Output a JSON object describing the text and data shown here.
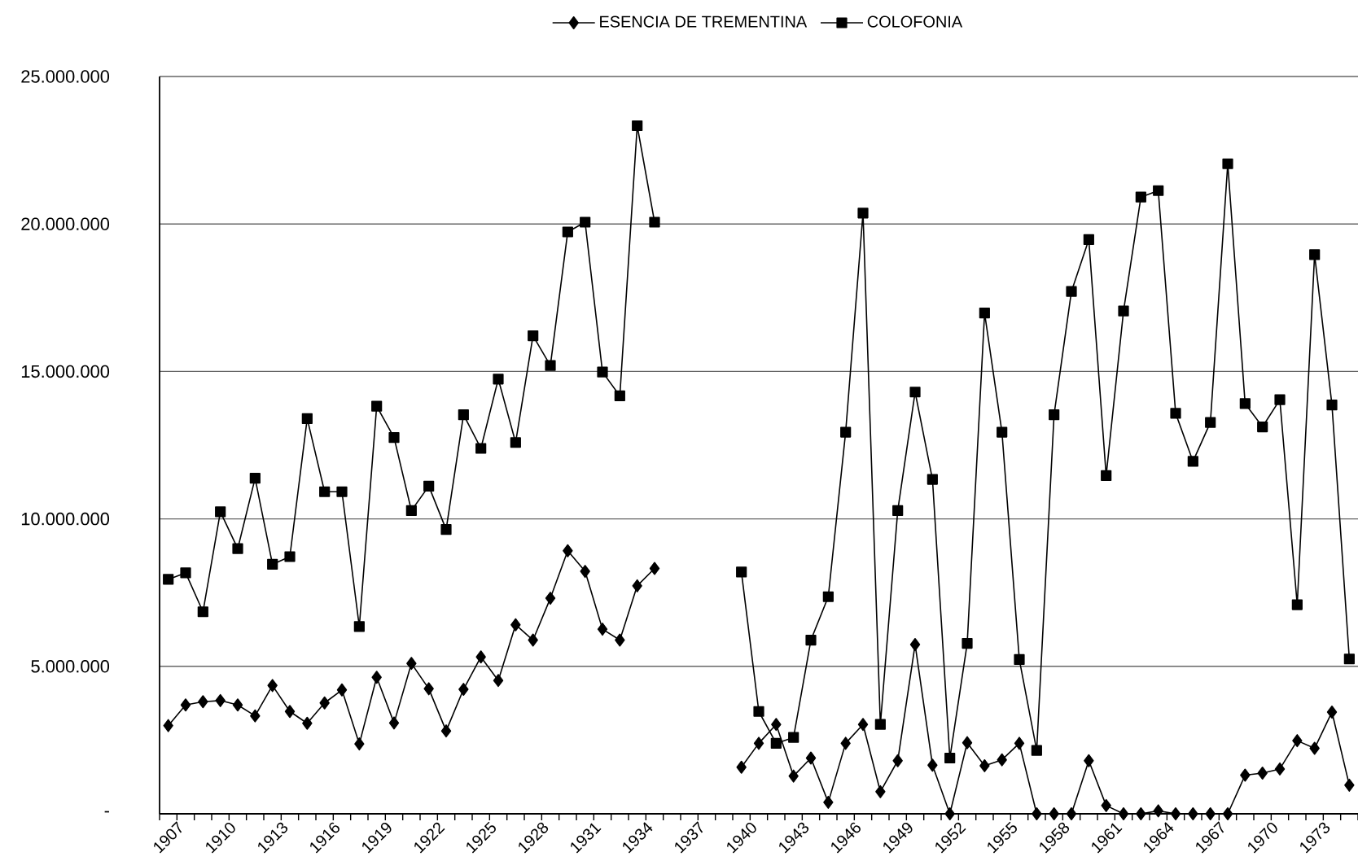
{
  "chart_data": {
    "type": "line",
    "categories": [
      "1907",
      null,
      null,
      "1910",
      null,
      null,
      "1913",
      null,
      null,
      "1916",
      null,
      null,
      "1919",
      null,
      null,
      "1922",
      null,
      null,
      "1925",
      null,
      null,
      "1928",
      null,
      null,
      "1931",
      null,
      null,
      "1934",
      null,
      null,
      "1937",
      null,
      null,
      "1940",
      null,
      null,
      "1943",
      null,
      null,
      "1946",
      null,
      null,
      "1949",
      null,
      null,
      "1952",
      null,
      null,
      "1955",
      null,
      null,
      "1958",
      null,
      null,
      "1961",
      null,
      null,
      "1964",
      null,
      null,
      "1967",
      null,
      null,
      "1970",
      null,
      null,
      "1973",
      null,
      null
    ],
    "series": [
      {
        "name": "ESENCIA DE TREMENTINA",
        "color": "#000000",
        "marker": "diamond",
        "values": [
          2990000,
          3690000,
          3800000,
          3840000,
          3690000,
          3320000,
          4350000,
          3470000,
          3070000,
          3760000,
          4200000,
          2370000,
          4630000,
          3080000,
          5100000,
          4240000,
          2810000,
          4220000,
          5320000,
          4520000,
          6410000,
          5890000,
          7310000,
          8920000,
          8220000,
          6260000,
          5890000,
          7730000,
          8320000,
          null,
          null,
          null,
          null,
          1580000,
          2390000,
          3030000,
          1280000,
          1890000,
          390000,
          2390000,
          3030000,
          750000,
          1800000,
          5740000,
          1650000,
          0,
          2410000,
          1630000,
          1830000,
          2390000,
          0,
          0,
          0,
          1800000,
          280000,
          0,
          0,
          100000,
          0,
          0,
          0,
          0,
          1310000,
          1380000,
          1520000,
          2480000,
          2220000,
          3450000,
          970000
        ]
      },
      {
        "name": "COLOFONIA",
        "color": "#000000",
        "marker": "square",
        "values": [
          7950000,
          8170000,
          6850000,
          10240000,
          8990000,
          11380000,
          8460000,
          8720000,
          13400000,
          10920000,
          10920000,
          6350000,
          13820000,
          12760000,
          10280000,
          11110000,
          9640000,
          13530000,
          12390000,
          14740000,
          12590000,
          16210000,
          15200000,
          19730000,
          20060000,
          14980000,
          14170000,
          23330000,
          20060000,
          null,
          null,
          null,
          null,
          8200000,
          3470000,
          2390000,
          2590000,
          5890000,
          7360000,
          12940000,
          20370000,
          3030000,
          10280000,
          14300000,
          11340000,
          1890000,
          5780000,
          16980000,
          12940000,
          5230000,
          2150000,
          13530000,
          17710000,
          19470000,
          11470000,
          17050000,
          20910000,
          21130000,
          13580000,
          11950000,
          13270000,
          22040000,
          13910000,
          13120000,
          14040000,
          7090000,
          18960000,
          13860000,
          5250000
        ]
      }
    ],
    "ylim": [
      0,
      25000000
    ],
    "yticks": [
      {
        "value": 0,
        "label": "-"
      },
      {
        "value": 5000000,
        "label": "5.000.000"
      },
      {
        "value": 10000000,
        "label": "10.000.000"
      },
      {
        "value": 15000000,
        "label": "15.000.000"
      },
      {
        "value": 20000000,
        "label": "20.000.000"
      },
      {
        "value": 25000000,
        "label": "25.000.000"
      }
    ],
    "grid": "y",
    "legend": "top",
    "line_style": "solid"
  }
}
